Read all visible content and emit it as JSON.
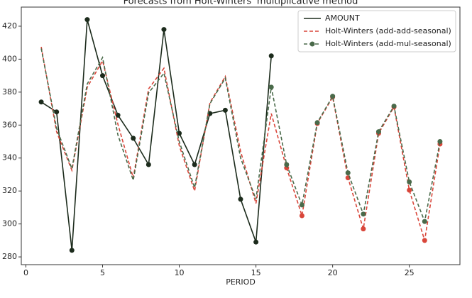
{
  "chart_data": {
    "type": "line",
    "title": "Forecasts from Holt-Winters' multiplicative method",
    "x_label": "PERIOD",
    "x": [
      1,
      2,
      3,
      4,
      5,
      6,
      7,
      8,
      9,
      10,
      11,
      12,
      13,
      14,
      15,
      16,
      17,
      18,
      19,
      20,
      21,
      22,
      23,
      24,
      25,
      26,
      27
    ],
    "series": [
      {
        "name": "AMOUNT",
        "color": "#1c2b1c",
        "values": [
          374,
          368,
          284,
          424,
          390,
          366,
          352,
          336,
          418,
          355,
          336,
          367,
          369,
          315,
          289,
          402,
          null,
          null,
          null,
          null,
          null,
          null,
          null,
          null,
          null,
          null,
          null
        ]
      },
      {
        "name": "Holt-Winters (add-add-seasonal)",
        "color": "#d9463a",
        "values": [
          407.5,
          356,
          332.5,
          383,
          399,
          360.5,
          328,
          382,
          394.5,
          347.5,
          320,
          373.5,
          389.5,
          344,
          312.5,
          367,
          334,
          305,
          361,
          377,
          328,
          297,
          355,
          371,
          320.5,
          290,
          348.5
        ]
      },
      {
        "name": "Holt-Winters (add-mul-seasonal)",
        "color": "#4a6a4a",
        "values": [
          406.5,
          358,
          333.5,
          385,
          401,
          354,
          326.5,
          379.5,
          391.5,
          350,
          322,
          373,
          388.5,
          340,
          315,
          383,
          336,
          311.5,
          361.5,
          377.5,
          331,
          306,
          356,
          371.5,
          325.5,
          301.5,
          350
        ]
      }
    ],
    "xlim": [
      -0.3,
      28.3
    ],
    "xticks": [
      0,
      5,
      10,
      15,
      20,
      25
    ],
    "ylim": [
      275.3,
      431.6
    ],
    "yticks": [
      280,
      300,
      320,
      340,
      360,
      380,
      400,
      420
    ],
    "legend": "upper right"
  }
}
